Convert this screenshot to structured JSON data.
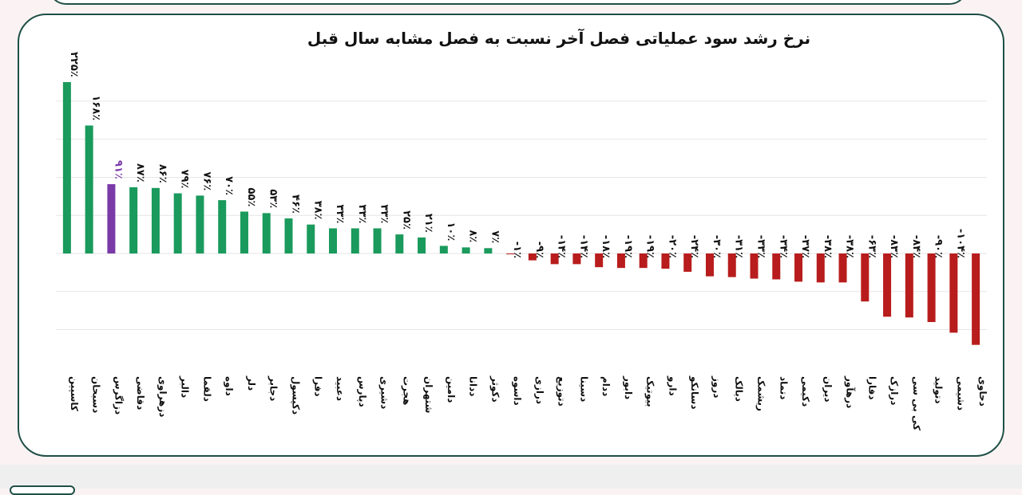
{
  "chart_data": {
    "type": "bar",
    "title": "نرخ رشد سود عملیاتی فصل آخر نسبت به فصل مشابه سال قبل",
    "categories": [
      "کاسپین",
      "دسبحان",
      "دزاگرس",
      "دقاضی",
      "دزهراوی",
      "دالبر",
      "دلقما",
      "داوه",
      "دلر",
      "دجابر",
      "دکپسول",
      "دفرا",
      "دعبید",
      "دپارس",
      "دشیری",
      "هجرت",
      "شتهران",
      "دامین",
      "ددانا",
      "دکوثر",
      "داسوه",
      "درازی",
      "دتوزیع",
      "دسینا",
      "ددام",
      "دابور",
      "بیوتیک",
      "دارو",
      "دسانکو",
      "دروز",
      "دیالک",
      "ریشمک",
      "دتماد",
      "دکیمی",
      "دیران",
      "درهآور",
      "دفارا",
      "درازک",
      "کی بی سی",
      "دتولید",
      "دشیمی",
      "دحاوی"
    ],
    "values": [
      225,
      168,
      91,
      87,
      86,
      79,
      76,
      70,
      55,
      53,
      46,
      38,
      33,
      33,
      33,
      25,
      21,
      10,
      8,
      7,
      -1,
      -9,
      -14,
      -14,
      -18,
      -19,
      -19,
      -20,
      -24,
      -30,
      -31,
      -33,
      -34,
      -37,
      -38,
      -38,
      -63,
      -83,
      -84,
      -90,
      -104,
      -120
    ],
    "value_labels": [
      "۲۲۵٪",
      "۱۶۸٪",
      "۹۱٪",
      "۸۷٪",
      "۸۶٪",
      "۷۹٪",
      "۷۶٪",
      "۷۰٪",
      "۵۵٪",
      "۵۳٪",
      "۴۶٪",
      "۳۸٪",
      "۳۳٪",
      "۳۳٪",
      "۳۳٪",
      "۲۵٪",
      "۲۱٪",
      "۱۰٪",
      "۸٪",
      "۷٪",
      "-۱٪",
      "-۹٪",
      "-۱۴٪",
      "-۱۴٪",
      "-۱۸٪",
      "-۱۹٪",
      "-۱۹٪",
      "-۲۰٪",
      "-۲۴٪",
      "-۳۰٪",
      "-۳۱٪",
      "-۳۳٪",
      "-۳۴٪",
      "-۳۷٪",
      "-۳۸٪",
      "-۳۸٪",
      "-۶۳٪",
      "-۸۳٪",
      "-۸۴٪",
      "-۹۰٪",
      "-۱۰۴٪",
      ""
    ],
    "highlight_index": 2,
    "colors": {
      "positive": "#1a9a5c",
      "negative": "#b81c1c",
      "highlight": "#7a3aa8",
      "grid": "#e6e6e6"
    },
    "ylim": [
      -150,
      225
    ],
    "grid": true,
    "xlabel": "",
    "ylabel": ""
  }
}
